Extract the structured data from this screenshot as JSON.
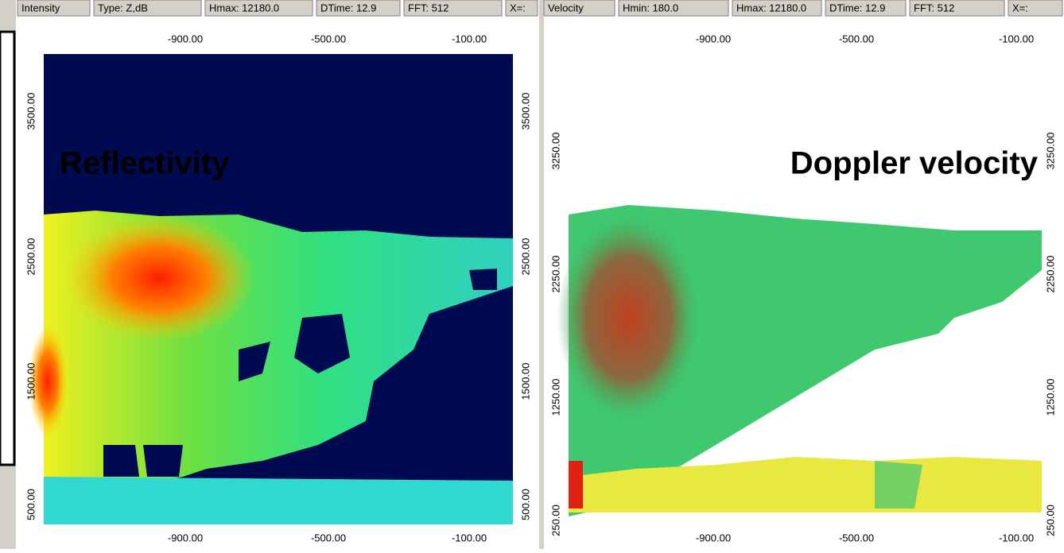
{
  "panels": [
    {
      "header": [
        "Intensity",
        "Type: Z,dB",
        "Hmax: 12180.0",
        "DTime:  12.9",
        "FFT: 512",
        "X=:"
      ],
      "x_ticks": [
        "-900.00",
        "-500.00",
        "-100.00"
      ],
      "y_ticks": [
        "3500.00",
        "2500.00",
        "1500.00",
        "500.00"
      ],
      "label": "Reflectivity"
    },
    {
      "header": [
        "Velocity",
        "Hmin: 180.0",
        "Hmax: 12180.0",
        "DTime:  12.9",
        "FFT: 512",
        "X=:"
      ],
      "x_ticks": [
        "-900.00",
        "-500.00",
        "-100.00"
      ],
      "y_ticks": [
        "3250.00",
        "2250.00",
        "1250.00",
        "250.00"
      ],
      "label": "Doppler velocity"
    }
  ]
}
